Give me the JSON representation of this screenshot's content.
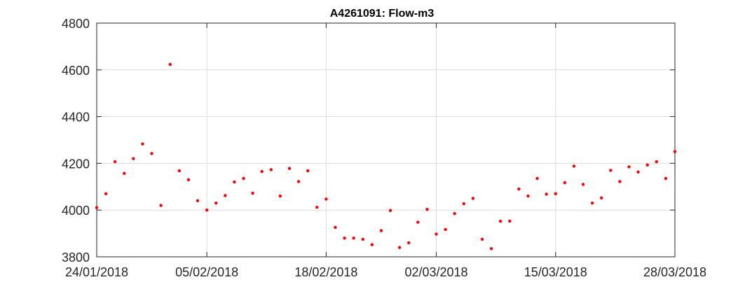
{
  "chart_data": {
    "type": "scatter",
    "title": "A4261091: Flow-m3",
    "xlabel": "",
    "ylabel": "",
    "x_tick_labels": [
      "24/01/2018",
      "05/02/2018",
      "18/02/2018",
      "02/03/2018",
      "15/03/2018",
      "28/03/2018"
    ],
    "x_tick_dates": [
      "2018-01-24",
      "2018-02-05",
      "2018-02-18",
      "2018-03-02",
      "2018-03-15",
      "2018-03-28"
    ],
    "y_tick_labels": [
      "3800",
      "4000",
      "4200",
      "4400",
      "4600",
      "4800"
    ],
    "xlim": [
      "2018-01-24",
      "2018-03-28"
    ],
    "ylim": [
      3800,
      4800
    ],
    "grid": true,
    "marker_color": "#ff0000",
    "x": [
      "2018-01-24",
      "2018-01-25",
      "2018-01-26",
      "2018-01-27",
      "2018-01-28",
      "2018-01-29",
      "2018-01-30",
      "2018-01-31",
      "2018-02-01",
      "2018-02-02",
      "2018-02-03",
      "2018-02-04",
      "2018-02-05",
      "2018-02-06",
      "2018-02-07",
      "2018-02-08",
      "2018-02-09",
      "2018-02-10",
      "2018-02-11",
      "2018-02-12",
      "2018-02-13",
      "2018-02-14",
      "2018-02-15",
      "2018-02-16",
      "2018-02-17",
      "2018-02-18",
      "2018-02-19",
      "2018-02-20",
      "2018-02-21",
      "2018-02-22",
      "2018-02-23",
      "2018-02-24",
      "2018-02-25",
      "2018-02-26",
      "2018-02-27",
      "2018-02-28",
      "2018-03-01",
      "2018-03-02",
      "2018-03-03",
      "2018-03-04",
      "2018-03-05",
      "2018-03-06",
      "2018-03-07",
      "2018-03-08",
      "2018-03-09",
      "2018-03-10",
      "2018-03-11",
      "2018-03-12",
      "2018-03-13",
      "2018-03-14",
      "2018-03-15",
      "2018-03-16",
      "2018-03-17",
      "2018-03-18",
      "2018-03-19",
      "2018-03-20",
      "2018-03-21",
      "2018-03-22",
      "2018-03-23",
      "2018-03-24",
      "2018-03-25",
      "2018-03-26",
      "2018-03-27",
      "2018-03-28"
    ],
    "y": [
      4010,
      4070,
      4207,
      4157,
      4220,
      4283,
      4242,
      4020,
      4623,
      4168,
      4130,
      4040,
      4000,
      4030,
      4062,
      4120,
      4135,
      4072,
      4165,
      4173,
      4060,
      4178,
      4122,
      4168,
      4012,
      4047,
      3926,
      3880,
      3880,
      3875,
      3852,
      3912,
      3998,
      3840,
      3860,
      3948,
      4003,
      3897,
      3917,
      3985,
      4027,
      4050,
      3875,
      3835,
      3952,
      3953,
      4090,
      4060,
      4135,
      4068,
      4070,
      4117,
      4188,
      4110,
      4030,
      4052,
      4170,
      4122,
      4185,
      4163,
      4193,
      4207,
      4135,
      4250
    ]
  }
}
